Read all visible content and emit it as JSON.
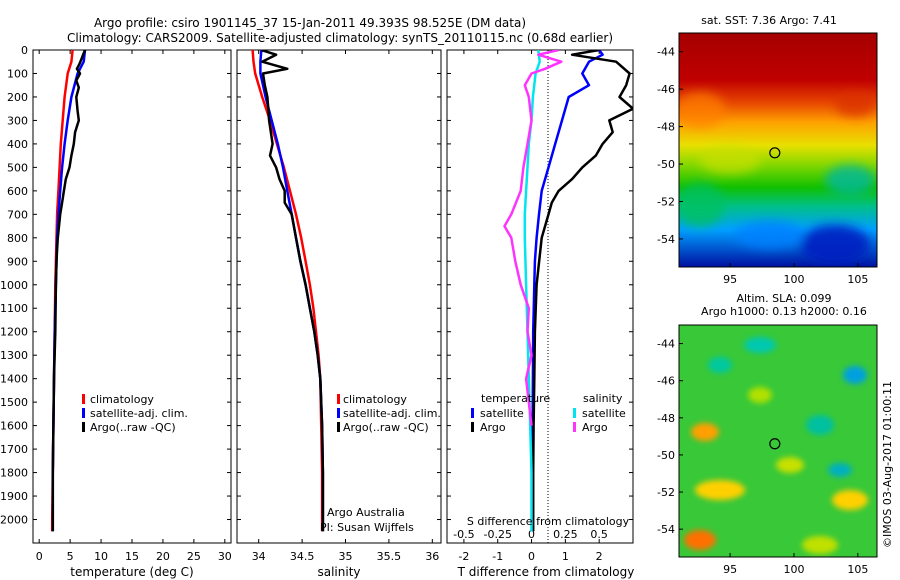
{
  "header": {
    "title_line1": "Argo profile: csiro 1901145_37 15-Jan-2011 49.393S 98.525E (DM data)",
    "title_line2": "Climatology: CARS2009. Satellite-adjusted climatology: synTS_20110115.nc (0.68d earlier)"
  },
  "colors": {
    "climatology": "#ff0000",
    "satellite": "#0000ff",
    "argo": "#000000",
    "salinity_satellite": "#00e5ee",
    "salinity_argo": "#ff33ff"
  },
  "chart_data": [
    {
      "type": "line",
      "name": "temperature-profile",
      "xlabel": "temperature (deg C)",
      "ylabel": "",
      "xlim": [
        -1,
        31
      ],
      "ylim": [
        2100,
        0
      ],
      "x_ticks": [
        "0",
        "5",
        "10",
        "15",
        "20",
        "25",
        "30"
      ],
      "y_ticks": [
        "0",
        "100",
        "200",
        "300",
        "400",
        "500",
        "600",
        "700",
        "800",
        "900",
        "1000",
        "1100",
        "1200",
        "1300",
        "1400",
        "1500",
        "1600",
        "1700",
        "1800",
        "1900",
        "2000"
      ],
      "legend": [
        "climatology",
        "satellite-adj. clim.",
        "Argo(..raw -QC)"
      ],
      "series": [
        {
          "name": "climatology",
          "color": "#ff0000",
          "depth": [
            0,
            50,
            100,
            200,
            300,
            400,
            500,
            600,
            700,
            800,
            900,
            1000,
            1200,
            1400,
            1600,
            1800,
            2000,
            2050
          ],
          "values": [
            5.4,
            5.2,
            4.6,
            4.1,
            3.8,
            3.5,
            3.3,
            3.1,
            2.9,
            2.8,
            2.7,
            2.6,
            2.5,
            2.4,
            2.3,
            2.2,
            2.1,
            2.1
          ]
        },
        {
          "name": "satellite-adj. clim.",
          "color": "#0000ff",
          "depth": [
            0,
            50,
            100,
            200,
            300,
            400,
            500,
            600,
            700,
            800,
            900,
            1000,
            1200,
            1400,
            1600,
            1800,
            2000,
            2050
          ],
          "values": [
            7.4,
            7.2,
            6.2,
            5.2,
            4.6,
            4.1,
            3.7,
            3.4,
            3.1,
            2.9,
            2.8,
            2.7,
            2.5,
            2.4,
            2.3,
            2.2,
            2.2,
            2.2
          ]
        },
        {
          "name": "Argo(..raw -QC)",
          "color": "#000000",
          "depth": [
            0,
            20,
            40,
            60,
            80,
            100,
            130,
            160,
            200,
            260,
            300,
            350,
            400,
            450,
            500,
            550,
            600,
            650,
            700,
            750,
            800,
            850,
            900,
            1000,
            1200,
            1400,
            1600,
            1800,
            2000,
            2050
          ],
          "values": [
            7.4,
            7.1,
            6.8,
            6.5,
            6.1,
            6.6,
            6.0,
            6.4,
            6.0,
            6.2,
            6.4,
            5.8,
            5.6,
            5.2,
            4.9,
            4.3,
            4.0,
            3.7,
            3.4,
            3.2,
            3.0,
            2.9,
            2.8,
            2.7,
            2.6,
            2.4,
            2.3,
            2.2,
            2.2,
            2.2
          ]
        }
      ]
    },
    {
      "type": "line",
      "name": "salinity-profile",
      "xlabel": "salinity",
      "ylabel": "",
      "xlim": [
        33.75,
        36.1
      ],
      "ylim": [
        2100,
        0
      ],
      "x_ticks": [
        "34",
        "34.5",
        "35",
        "35.5",
        "36"
      ],
      "legend": [
        "climatology",
        "satellite-adj. clim.",
        "Argo(..raw -QC)"
      ],
      "annotation": [
        "Argo Australia",
        "PI: Susan Wijffels"
      ],
      "series": [
        {
          "name": "climatology",
          "color": "#ff0000",
          "depth": [
            0,
            50,
            100,
            200,
            300,
            400,
            500,
            600,
            700,
            800,
            900,
            1000,
            1100,
            1200,
            1300,
            1400,
            1600,
            1800,
            2000,
            2050
          ],
          "values": [
            33.93,
            33.94,
            33.96,
            34.04,
            34.13,
            34.21,
            34.29,
            34.36,
            34.43,
            34.49,
            34.54,
            34.59,
            34.63,
            34.66,
            34.69,
            34.71,
            34.72,
            34.73,
            34.73,
            34.73
          ]
        },
        {
          "name": "satellite-adj. clim.",
          "color": "#0000ff",
          "depth": [
            0,
            50,
            100,
            200,
            300,
            400,
            500,
            600,
            700,
            800,
            900,
            1000,
            1100,
            1200,
            1300,
            1400,
            1600,
            1800,
            2000,
            2050
          ],
          "values": [
            34.03,
            34.02,
            34.02,
            34.08,
            34.15,
            34.22,
            34.28,
            34.33,
            34.38,
            34.43,
            34.48,
            34.54,
            34.59,
            34.64,
            34.68,
            34.71,
            34.73,
            34.74,
            34.74,
            34.74
          ]
        },
        {
          "name": "Argo(..raw -QC)",
          "color": "#000000",
          "depth": [
            0,
            20,
            50,
            80,
            100,
            150,
            200,
            300,
            400,
            450,
            500,
            550,
            600,
            650,
            700,
            800,
            900,
            1000,
            1100,
            1200,
            1300,
            1400,
            1600,
            1800,
            2000,
            2050
          ],
          "values": [
            34.03,
            34.2,
            34.04,
            34.33,
            34.05,
            34.07,
            34.1,
            34.12,
            34.16,
            34.13,
            34.2,
            34.24,
            34.3,
            34.3,
            34.38,
            34.43,
            34.48,
            34.54,
            34.59,
            34.64,
            34.68,
            34.71,
            34.73,
            34.74,
            34.74,
            34.74
          ]
        }
      ]
    },
    {
      "type": "line",
      "name": "difference-profile",
      "xlabel": "T difference from climatology",
      "xlabel2": "S difference from climatology",
      "xlim": [
        -2.5,
        3.0
      ],
      "x_ticks": [
        "-2",
        "-1",
        "0",
        "1",
        "2"
      ],
      "x2_ticks": [
        "-0.5",
        "-0.25",
        "0",
        "0.25",
        "0.5"
      ],
      "ylim": [
        2100,
        0
      ],
      "legend_headers": [
        "temperature",
        "salinity"
      ],
      "legend": [
        "satellite",
        "Argo",
        "satellite",
        "Argo"
      ],
      "series": [
        {
          "name": "temperature satellite",
          "color": "#0000ff",
          "depth": [
            0,
            20,
            50,
            100,
            150,
            200,
            300,
            400,
            500,
            600,
            700,
            800,
            900,
            1000,
            1200,
            1400,
            1600,
            1800,
            2000,
            2050
          ],
          "values": [
            2.0,
            2.1,
            1.7,
            1.5,
            1.7,
            1.1,
            0.9,
            0.7,
            0.5,
            0.3,
            0.22,
            0.15,
            0.1,
            0.08,
            0.05,
            0.04,
            0.03,
            0.02,
            0.02,
            0.02
          ]
        },
        {
          "name": "temperature Argo",
          "color": "#000000",
          "depth": [
            0,
            20,
            50,
            100,
            150,
            200,
            250,
            300,
            350,
            400,
            450,
            500,
            550,
            600,
            650,
            700,
            800,
            1000,
            1200,
            1400,
            1600,
            1800,
            2000,
            2050
          ],
          "values": [
            2.0,
            1.2,
            2.5,
            2.9,
            2.8,
            2.6,
            3.0,
            2.3,
            2.4,
            2.1,
            1.9,
            1.5,
            1.2,
            0.8,
            0.6,
            0.5,
            0.3,
            0.15,
            0.1,
            0.08,
            0.06,
            0.05,
            0.05,
            0.05
          ]
        },
        {
          "name": "salinity satellite",
          "color": "#00e5ee",
          "depth": [
            0,
            50,
            100,
            200,
            300,
            400,
            500,
            600,
            700,
            800,
            1000,
            1200,
            1400,
            1600,
            1800,
            2000,
            2050
          ],
          "values": [
            0.05,
            0.06,
            0.03,
            0.01,
            0.0,
            -0.02,
            -0.03,
            -0.04,
            -0.05,
            -0.05,
            -0.04,
            -0.03,
            -0.02,
            -0.01,
            0.0,
            0.0,
            0.0
          ]
        },
        {
          "name": "salinity Argo",
          "color": "#ff33ff",
          "depth": [
            0,
            20,
            50,
            80,
            100,
            150,
            200,
            300,
            400,
            500,
            600,
            700,
            750,
            800,
            900,
            1000,
            1100,
            1200,
            1300,
            1400,
            1500,
            1600
          ],
          "values": [
            0.2,
            0.05,
            0.22,
            0.1,
            0.0,
            -0.05,
            -0.02,
            0.0,
            -0.03,
            -0.06,
            -0.08,
            -0.15,
            -0.2,
            -0.15,
            -0.12,
            -0.08,
            -0.02,
            -0.03,
            0.0,
            -0.04,
            -0.02,
            0.0
          ]
        }
      ]
    },
    {
      "type": "heatmap",
      "name": "sst-map",
      "title": "sat. SST: 7.36  Argo: 7.41",
      "x_ticks": [
        "95",
        "100",
        "105"
      ],
      "y_ticks": [
        "-44",
        "-46",
        "-48",
        "-50",
        "-52",
        "-54"
      ],
      "xlim": [
        91,
        106.5
      ],
      "ylim": [
        -55.5,
        -43
      ],
      "marker": {
        "lon": 98.5,
        "lat": -49.4
      }
    },
    {
      "type": "heatmap",
      "name": "sla-map",
      "title": "Altim. SLA: 0.099",
      "subtitle": "Argo h1000: 0.13 h2000: 0.16",
      "x_ticks": [
        "95",
        "100",
        "105"
      ],
      "y_ticks": [
        "-44",
        "-46",
        "-48",
        "-50",
        "-52",
        "-54"
      ],
      "xlim": [
        91,
        106.5
      ],
      "ylim": [
        -55.5,
        -43
      ],
      "marker": {
        "lon": 98.5,
        "lat": -49.4
      }
    }
  ],
  "credit": "©IMOS 03-Aug-2017 01:00:11"
}
